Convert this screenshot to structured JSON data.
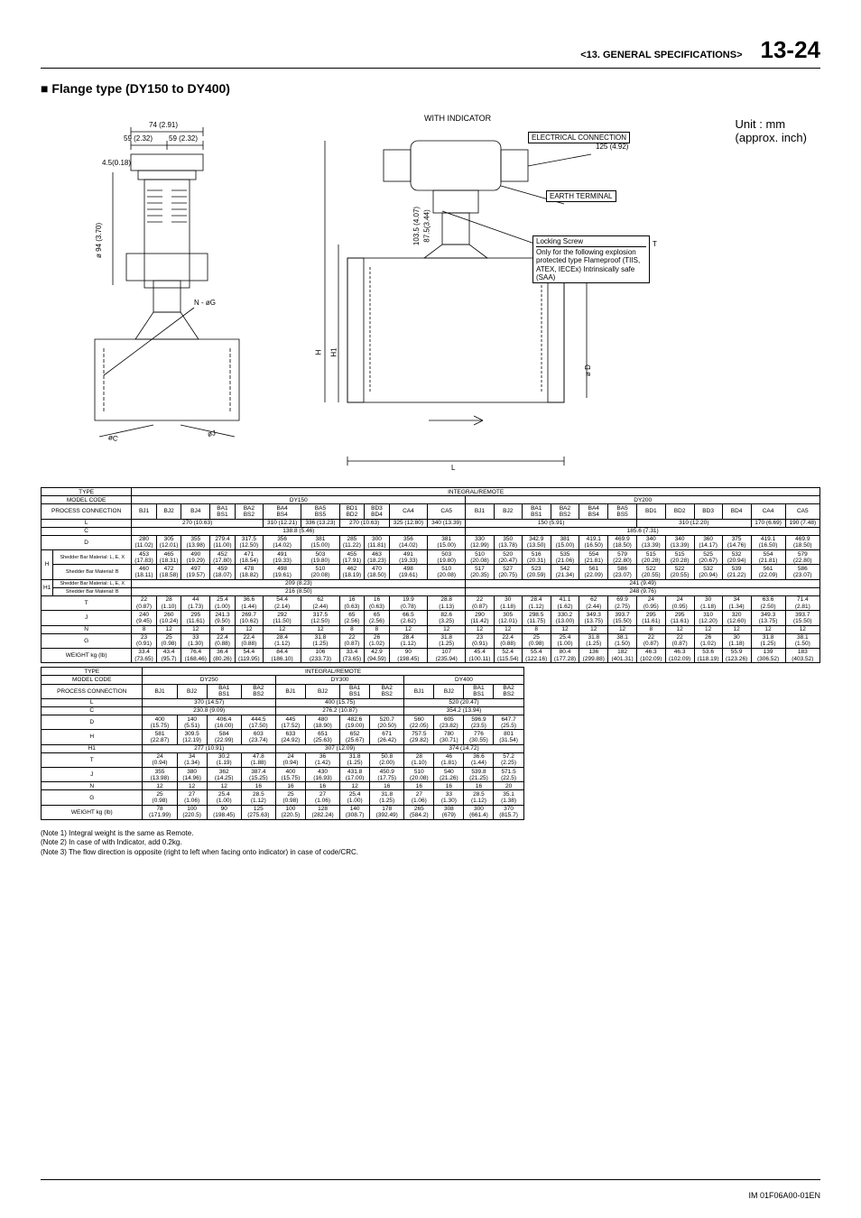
{
  "header": {
    "section": "<13.   GENERAL SPECIFICATIONS>",
    "page_number": "13-24"
  },
  "subtitle_prefix": "■",
  "subtitle": "Flange type  (DY150 to DY400)",
  "unit_line1": "Unit : mm",
  "unit_line2": "(approx. inch)",
  "diagram": {
    "dim_74": "74 (2.91)",
    "dim_59a": "59 (2.32)",
    "dim_59b": "59 (2.32)",
    "dim_45": "4.5(0.18)",
    "dim_phi94": "ø 94 (3.70)",
    "n_phiG": "N - øG",
    "phiC": "øC",
    "phiJ": "øJ",
    "with_indicator": "WITH INDICATOR",
    "electrical": "ELECTRICAL CONNECTION",
    "dim_125": "125 (4.92)",
    "earth": "EARTH TERMINAL",
    "dim_1035": "103.5 (4.07)",
    "dim_875": "87.5(3.44)",
    "locking": "Locking Screw",
    "explosion": "Only for the following explosion protected type\nFlameproof\n(TIIS, ATEX, IECEx)\nIntrinsically safe (SAA)",
    "H": "H",
    "H1": "H1",
    "T": "T",
    "phiD": "ø D",
    "L": "L"
  },
  "table1": {
    "type_label": "TYPE",
    "integral_remote": "INTEGRAL/REMOTE",
    "model_code": "MODEL CODE",
    "dy150": "DY150",
    "dy200": "DY200",
    "process": "PROCESS CONNECTION",
    "h1_shedder1": "Shedder Bar Material: L, E, X",
    "h1_shedder2": "Shedder Bar Material: B",
    "h_shedder1": "Shedder Bar Material: L, E, X",
    "h_shedder2": "Shedder Bar Material: B",
    "weight": "WEIGHT kg (lb)",
    "cols": [
      "BJ1",
      "BJ2",
      "BJ4",
      "BA1 BS1",
      "BA2 BS2",
      "BA4 BS4",
      "BA5 BS5",
      "BD1 BD2",
      "BD3 BD4",
      "CA4",
      "CA5",
      "BJ1",
      "BJ2",
      "BA1 BS1",
      "BA2 BS2",
      "BA4 BS4",
      "BA5 BS5",
      "BD1",
      "BD2",
      "BD3",
      "BD4",
      "CA4",
      "CA5"
    ],
    "L_row": {
      "dy150_a": "270 (10.63)",
      "dy150_b": "310 (12.21)",
      "dy150_c": "336 (13.23)",
      "dy150_d": "270 (10.63)",
      "dy150_e": "325 (12.80)",
      "dy150_f": "340 (13.39)",
      "dy200_a": "150 (5.91)",
      "dy200_b": "310 (12.20)",
      "dy200_c": "170 (6.69)",
      "dy200_d": "190 (7.48)"
    },
    "C_row": {
      "dy150": "138.8 (5.46)",
      "dy200": "185.6 (7.31)"
    },
    "D_row": [
      "280 (11.02)",
      "305 (12.01)",
      "355 (13.98)",
      "279.4 (11.00)",
      "317.5 (12.50)",
      "356 (14.02)",
      "381 (15.00)",
      "285 (11.22)",
      "300 (11.81)",
      "356 (14.02)",
      "381 (15.00)",
      "330 (12.99)",
      "350 (13.78)",
      "342.9 (13.50)",
      "381 (15.00)",
      "419.1 (16.50)",
      "469.9 (18.50)",
      "340 (13.39)",
      "340 (13.39)",
      "360 (14.17)",
      "375 (14.76)",
      "419.1 (16.50)",
      "469.9 (18.50)"
    ],
    "H_row1": [
      "453 (17.83)",
      "465 (18.31)",
      "490 (19.29)",
      "452 (17.80)",
      "471 (18.54)",
      "491 (19.33)",
      "503 (19.80)",
      "455 (17.91)",
      "463 (18.23)",
      "491 (19.33)",
      "503 (19.80)",
      "510 (20.08)",
      "520 (20.47)",
      "516 (20.31)",
      "535 (21.06)",
      "554 (21.81)",
      "579 (22.80)",
      "515 (20.28)",
      "515 (20.28)",
      "525 (20.67)",
      "532 (20.94)",
      "554 (21.81)",
      "579 (22.80)"
    ],
    "H_row2": [
      "460 (18.11)",
      "472 (18.58)",
      "497 (19.57)",
      "459 (18.07)",
      "478 (18.82)",
      "498 (19.61)",
      "510 (20.08)",
      "462 (18.19)",
      "470 (18.50)",
      "498 (19.61)",
      "510 (20.08)",
      "517 (20.35)",
      "527 (20.75)",
      "523 (20.59)",
      "542 (21.34)",
      "561 (22.09)",
      "586 (23.07)",
      "522 (20.55)",
      "522 (20.55)",
      "532 (20.94)",
      "539 (21.22)",
      "561 (22.09)",
      "586 (23.07)"
    ],
    "H1_row1": "209 (8.23)",
    "H1_row1b": "241 (9.49)",
    "H1_row2": "216 (8.50)",
    "H1_row2b": "248 (9.76)",
    "T_row": [
      "22 (0.87)",
      "28 (1.10)",
      "44 (1.73)",
      "25.4 (1.00)",
      "36.6 (1.44)",
      "54.4 (2.14)",
      "62 (2.44)",
      "16 (0.63)",
      "16 (0.63)",
      "19.9 (0.78)",
      "28.8 (1.13)",
      "22 (0.87)",
      "30 (1.18)",
      "28.4 (1.12)",
      "41.1 (1.62)",
      "62 (2.44)",
      "69.9 (2.75)",
      "24 (0.95)",
      "24 (0.95)",
      "30 (1.18)",
      "34 (1.34)",
      "63.6 (2.50)",
      "71.4 (2.81)"
    ],
    "J_row": [
      "240 (9.45)",
      "260 (10.24)",
      "295 (11.61)",
      "241.3 (9.50)",
      "269.7 (10.62)",
      "292 (11.50)",
      "317.5 (12.50)",
      "65 (2.56)",
      "65 (2.56)",
      "66.5 (2.62)",
      "82.6 (3.25)",
      "290 (11.42)",
      "305 (12.01)",
      "298.5 (11.75)",
      "330.2 (13.00)",
      "349.3 (13.75)",
      "393.7 (15.50)",
      "295 (11.61)",
      "295 (11.61)",
      "310 (12.20)",
      "320 (12.60)",
      "349.3 (13.75)",
      "393.7 (15.50)"
    ],
    "N_row": [
      "8",
      "12",
      "12",
      "8",
      "12",
      "12",
      "12",
      "8",
      "8",
      "12",
      "12",
      "12",
      "12",
      "8",
      "12",
      "12",
      "12",
      "8",
      "12",
      "12",
      "12",
      "12",
      "12"
    ],
    "G_row": [
      "23 (0.91)",
      "25 (0.98)",
      "33 (1.30)",
      "22.4 (0.88)",
      "22.4 (0.88)",
      "28.4 (1.12)",
      "31.8 (1.25)",
      "22 (0.87)",
      "26 (1.02)",
      "28.4 (1.12)",
      "31.8 (1.25)",
      "23 (0.91)",
      "22.4 (0.88)",
      "25 (0.98)",
      "25.4 (1.00)",
      "31.8 (1.25)",
      "38.1 (1.50)",
      "22 (0.87)",
      "22 (0.87)",
      "26 (1.02)",
      "30 (1.18)",
      "31.8 (1.25)",
      "38.1 (1.50)"
    ],
    "W_row": [
      "33.4 (73.65)",
      "43.4 (95.7)",
      "76.4 (168.46)",
      "36.4 (80.26)",
      "54.4 (119.95)",
      "84.4 (186.10)",
      "106 (233.73)",
      "33.4 (73.65)",
      "42.9 (94.59)",
      "90 (198.45)",
      "107 (235.94)",
      "45.4 (100.11)",
      "52.4 (115.54)",
      "55.4 (122.16)",
      "80.4 (177.28)",
      "136 (299.88)",
      "182 (401.31)",
      "46.3 (102.09)",
      "46.3 (102.09)",
      "53.6 (118.19)",
      "55.9 (123.26)",
      "139 (306.52)",
      "183 (403.52)"
    ]
  },
  "table2": {
    "models": [
      "DY250",
      "DY300",
      "DY400"
    ],
    "cols": [
      "BJ1",
      "BJ2",
      "BA1 BS1",
      "BA2 BS2",
      "BJ1",
      "BJ2",
      "BA1 BS1",
      "BA2 BS2",
      "BJ1",
      "BJ2",
      "BA1 BS1",
      "BA2 BS2"
    ],
    "L_row": [
      "370 (14.57)",
      "400 (15.75)",
      "520 (20.47)"
    ],
    "C_row": [
      "230.8 (9.09)",
      "276.2 (10.87)",
      "354.2 (13.94)"
    ],
    "D_row": [
      "400 (15.75)",
      "140 (5.51)",
      "406.4 (16.00)",
      "444.5 (17.50)",
      "445 (17.52)",
      "480 (18.90)",
      "482.6 (19.00)",
      "520.7 (20.50)",
      "560 (22.05)",
      "605 (23.82)",
      "596.9 (23.5)",
      "647.7 (25.5)"
    ],
    "H_row": [
      "581 (22.87)",
      "309.5 (12.19)",
      "584 (22.99)",
      "603 (23.74)",
      "633 (24.92)",
      "651 (25.63)",
      "652 (25.67)",
      "671 (26.42)",
      "757.5 (29.82)",
      "780 (30.71)",
      "776 (30.55)",
      "801 (31.54)"
    ],
    "H1_row": [
      "277 (10.91)",
      "307 (12.09)",
      "374 (14.72)"
    ],
    "T_row": [
      "24 (0.94)",
      "34 (1.34)",
      "30.2 (1.19)",
      "47.8 (1.88)",
      "24 (0.94)",
      "36 (1.42)",
      "31.8 (1.25)",
      "50.8 (2.00)",
      "28 (1.10)",
      "46 (1.81)",
      "36.6 (1.44)",
      "57.2 (2.25)"
    ],
    "J_row": [
      "355 (13.98)",
      "380 (14.96)",
      "362 (14.25)",
      "387.4 (15.25)",
      "400 (15.75)",
      "430 (16.93)",
      "431.8 (17.00)",
      "450.9 (17.75)",
      "510 (20.08)",
      "540 (21.26)",
      "539.8 (21.25)",
      "571.5 (22.5)"
    ],
    "N_row": [
      "12",
      "12",
      "12",
      "16",
      "16",
      "16",
      "12",
      "16",
      "16",
      "16",
      "16",
      "20"
    ],
    "G_row": [
      "25 (0.98)",
      "27 (1.06)",
      "25.4 (1.00)",
      "28.5 (1.12)",
      "25 (0.98)",
      "27 (1.06)",
      "25.4 (1.00)",
      "31.8 (1.25)",
      "27 (1.06)",
      "33 (1.30)",
      "28.5 (1.12)",
      "35.1 (1.38)"
    ],
    "W_row": [
      "78 (171.99)",
      "100 (220.5)",
      "90 (198.45)",
      "125 (275.63)",
      "100 (220.5)",
      "128 (282.24)",
      "140 (308.7)",
      "178 (392.49)",
      "265 (584.2)",
      "308 (679)",
      "300 (661.4)",
      "370 (815.7)"
    ]
  },
  "notes": {
    "n1": "(Note 1)    Integral weight is the same as Remote.",
    "n2": "(Note 2)    In case of with Indicator, add 0.2kg.",
    "n3": "(Note 3)    The flow direction is opposite (right to left when facing onto indicator) in case of code/CRC."
  },
  "footer": "IM 01F06A00-01EN",
  "colors": {
    "text": "#000000",
    "bg": "#ffffff",
    "rule": "#000000"
  },
  "typography": {
    "body_font": "Arial",
    "page_num_size": 26,
    "subtitle_size": 14,
    "table_size": 6.5,
    "notes_size": 8
  }
}
